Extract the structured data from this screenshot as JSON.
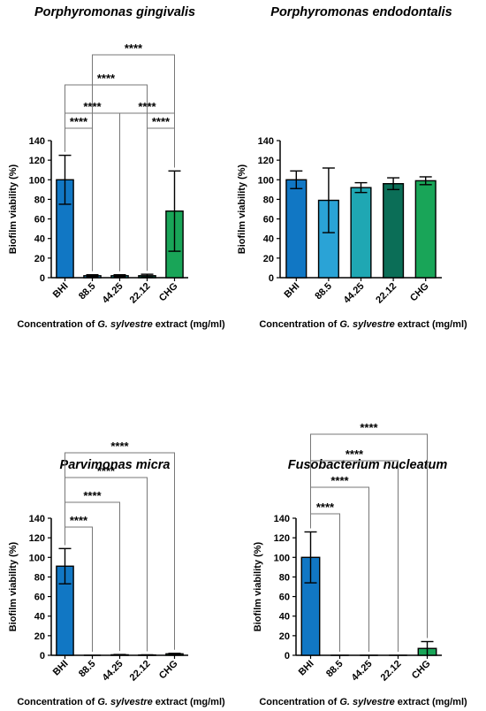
{
  "colors": {
    "BHI": "#1177c4",
    "88.5": "#2aa3d6",
    "44.25": "#1fa7b3",
    "22.12": "#0b6e57",
    "CHG": "#19a558"
  },
  "chart_data": [
    {
      "type": "bar",
      "title": "Porphyromonas gingivalis",
      "ylabel": "Biofilm viability (%)",
      "xlabel_prefix": "Concentration of ",
      "xlabel_italic": "G. sylvestre",
      "xlabel_suffix": " extract (mg/ml)",
      "categories": [
        "BHI",
        "88.5",
        "44.25",
        "22.12",
        "CHG"
      ],
      "values": [
        100,
        2,
        2,
        2,
        68
      ],
      "errors": [
        25,
        1,
        1,
        1.5,
        41
      ],
      "ylim": [
        0,
        140
      ],
      "yticks": [
        0,
        20,
        40,
        60,
        80,
        100,
        120,
        140
      ],
      "significance": [
        {
          "from": 1,
          "to": 4,
          "label": "****"
        },
        {
          "from": 0,
          "to": 3,
          "label": "****"
        },
        {
          "from": 0,
          "to": 2,
          "label": "****"
        },
        {
          "from": 2,
          "to": 4,
          "label": "****"
        },
        {
          "from": 0,
          "to": 1,
          "label": "****"
        },
        {
          "from": 3,
          "to": 4,
          "label": "****"
        }
      ]
    },
    {
      "type": "bar",
      "title": "Porphyromonas endodontalis",
      "ylabel": "Biofilm viability (%)",
      "xlabel_prefix": "Concentration of ",
      "xlabel_italic": "G. sylvestre",
      "xlabel_suffix": " extract (mg/ml)",
      "categories": [
        "BHI",
        "88.5",
        "44.25",
        "22.12",
        "CHG"
      ],
      "values": [
        100,
        79,
        92,
        96,
        99
      ],
      "errors": [
        9,
        33,
        5,
        6,
        4
      ],
      "ylim": [
        0,
        140
      ],
      "yticks": [
        0,
        20,
        40,
        60,
        80,
        100,
        120,
        140
      ],
      "significance": []
    },
    {
      "type": "bar",
      "title": "Parvimonas micra",
      "ylabel": "Biofilm viability (%)",
      "xlabel_prefix": "Concentration of ",
      "xlabel_italic": "G. sylvestre",
      "xlabel_suffix": " extract (mg/ml)",
      "categories": [
        "BHI",
        "88.5",
        "44.25",
        "22.12",
        "CHG"
      ],
      "values": [
        91,
        0,
        0.5,
        0.3,
        1.5
      ],
      "errors": [
        18,
        0,
        0.3,
        0.2,
        0.5
      ],
      "ylim": [
        0,
        140
      ],
      "yticks": [
        0,
        20,
        40,
        60,
        80,
        100,
        120,
        140
      ],
      "significance": [
        {
          "from": 0,
          "to": 4,
          "label": "****"
        },
        {
          "from": 0,
          "to": 3,
          "label": "****"
        },
        {
          "from": 0,
          "to": 2,
          "label": "****"
        },
        {
          "from": 0,
          "to": 1,
          "label": "****"
        }
      ]
    },
    {
      "type": "bar",
      "title": "Fusobacterium nucleatum",
      "ylabel": "Biofilm viability (%)",
      "xlabel_prefix": "Concentration of ",
      "xlabel_italic": "G. sylvestre",
      "xlabel_suffix": " extract (mg/ml)",
      "categories": [
        "BHI",
        "88.5",
        "44.25",
        "22.12",
        "CHG"
      ],
      "values": [
        100,
        0,
        0,
        0,
        7
      ],
      "errors": [
        26,
        0,
        0,
        0,
        7
      ],
      "ylim": [
        0,
        140
      ],
      "yticks": [
        0,
        20,
        40,
        60,
        80,
        100,
        120,
        140
      ],
      "significance": [
        {
          "from": 0,
          "to": 4,
          "label": "****"
        },
        {
          "from": 0,
          "to": 3,
          "label": "****"
        },
        {
          "from": 0,
          "to": 2,
          "label": "****"
        },
        {
          "from": 0,
          "to": 1,
          "label": "****"
        }
      ]
    }
  ]
}
